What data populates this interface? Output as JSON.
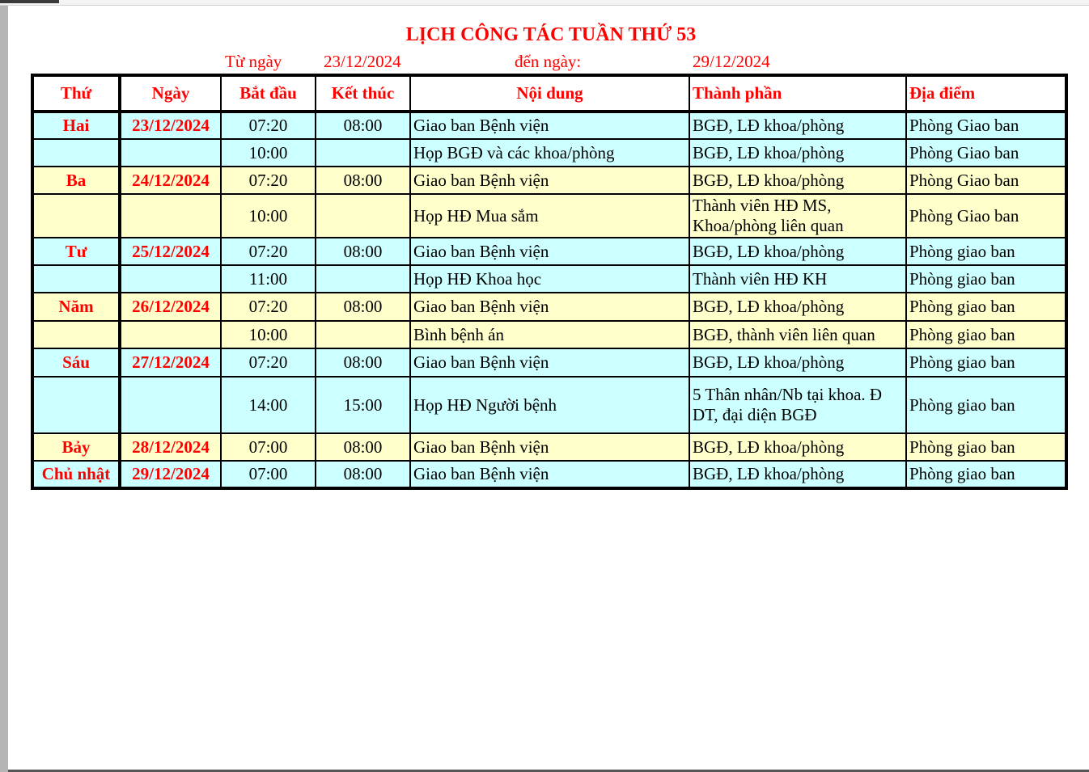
{
  "title": "LỊCH CÔNG TÁC TUẦN THỨ 53",
  "range": {
    "from_label": "Từ ngày",
    "from_date": "23/12/2024",
    "to_label": "đến ngày:",
    "to_date": "29/12/2024"
  },
  "headers": [
    "Thứ",
    "Ngày",
    "Bắt đầu",
    "Kết thúc",
    "Nội dung",
    "Thành phần",
    "Địa điểm"
  ],
  "colors": {
    "cyan_row": "#CCFFFF",
    "yellow_row": "#FFFFCC",
    "accent": "#FF0000"
  },
  "rows": [
    {
      "thu": "Hai",
      "ngay": "23/12/2024",
      "bat_dau": "07:20",
      "ket_thuc": "08:00",
      "noi_dung": "Giao ban Bệnh viện",
      "thanh_phan": "BGĐ, LĐ khoa/phòng",
      "dia_diem": "Phòng Giao ban"
    },
    {
      "thu": "",
      "ngay": "",
      "bat_dau": "10:00",
      "ket_thuc": "",
      "noi_dung": "Họp BGĐ và các khoa/phòng",
      "thanh_phan": "BGĐ, LĐ khoa/phòng",
      "dia_diem": "Phòng Giao ban"
    },
    {
      "thu": "Ba",
      "ngay": "24/12/2024",
      "bat_dau": "07:20",
      "ket_thuc": "08:00",
      "noi_dung": "Giao ban Bệnh viện",
      "thanh_phan": "BGĐ, LĐ khoa/phòng",
      "dia_diem": "Phòng Giao ban"
    },
    {
      "thu": "",
      "ngay": "",
      "bat_dau": "10:00",
      "ket_thuc": "",
      "noi_dung": "Họp HĐ Mua sắm",
      "thanh_phan": "Thành viên HĐ MS, Khoa/phòng liên quan",
      "dia_diem": "Phòng Giao ban"
    },
    {
      "thu": "Tư",
      "ngay": "25/12/2024",
      "bat_dau": "07:20",
      "ket_thuc": "08:00",
      "noi_dung": "Giao ban Bệnh viện",
      "thanh_phan": "BGĐ, LĐ khoa/phòng",
      "dia_diem": "Phòng  giao ban"
    },
    {
      "thu": "",
      "ngay": "",
      "bat_dau": "11:00",
      "ket_thuc": "",
      "noi_dung": "Họp HĐ Khoa học",
      "thanh_phan": "Thành viên HĐ KH",
      "dia_diem": "Phòng  giao ban"
    },
    {
      "thu": "Năm",
      "ngay": "26/12/2024",
      "bat_dau": "07:20",
      "ket_thuc": "08:00",
      "noi_dung": "Giao ban Bệnh viện",
      "thanh_phan": "BGĐ, LĐ khoa/phòng",
      "dia_diem": "Phòng  giao ban"
    },
    {
      "thu": "",
      "ngay": "",
      "bat_dau": "10:00",
      "ket_thuc": "",
      "noi_dung": "Bình bệnh án",
      "thanh_phan": "BGĐ, thành viên liên quan",
      "dia_diem": "Phòng  giao ban"
    },
    {
      "thu": "Sáu",
      "ngay": "27/12/2024",
      "bat_dau": "07:20",
      "ket_thuc": "08:00",
      "noi_dung": "Giao ban Bệnh viện",
      "thanh_phan": "BGĐ, LĐ khoa/phòng",
      "dia_diem": "Phòng  giao ban"
    },
    {
      "thu": "",
      "ngay": "",
      "bat_dau": "14:00",
      "ket_thuc": "15:00",
      "noi_dung": "Họp HĐ Người bệnh",
      "thanh_phan": "5 Thân nhân/Nb tại khoa. Đ DT, đại diện BGĐ",
      "dia_diem": "Phòng giao ban"
    },
    {
      "thu": "Bảy",
      "ngay": "28/12/2024",
      "bat_dau": "07:00",
      "ket_thuc": "08:00",
      "noi_dung": "Giao ban Bệnh viện",
      "thanh_phan": "BGĐ, LĐ khoa/phòng",
      "dia_diem": "Phòng  giao ban"
    },
    {
      "thu": "Chủ nhật",
      "ngay": "29/12/2024",
      "bat_dau": "07:00",
      "ket_thuc": "08:00",
      "noi_dung": "Giao ban Bệnh viện",
      "thanh_phan": "BGĐ, LĐ khoa/phòng",
      "dia_diem": "Phòng  giao ban"
    }
  ]
}
